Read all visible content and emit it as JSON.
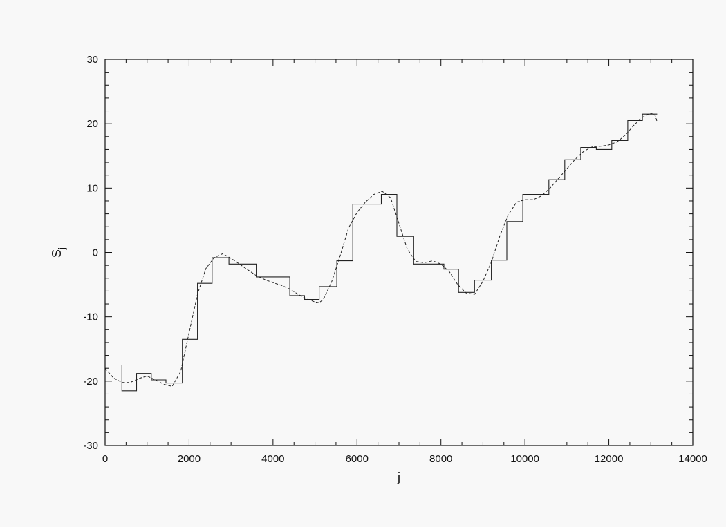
{
  "chart_data": {
    "type": "line",
    "title": "",
    "xlabel": "j",
    "ylabel_main": "S",
    "ylabel_sub": "j",
    "xlim": [
      0,
      14000
    ],
    "ylim": [
      -30,
      30
    ],
    "x_ticks": [
      0,
      2000,
      4000,
      6000,
      8000,
      10000,
      12000,
      14000
    ],
    "x_tick_labels": [
      "0",
      "2000",
      "4000",
      "6000",
      "8000",
      "10000",
      "12000",
      "14000"
    ],
    "y_ticks": [
      -30,
      -20,
      -10,
      0,
      10,
      20,
      30
    ],
    "y_tick_labels": [
      "-30",
      "-20",
      "-10",
      "0",
      "10",
      "20",
      "30"
    ],
    "grid": false,
    "series": [
      {
        "style": "step",
        "x": [
          0,
          400,
          400,
          750,
          750,
          1100,
          1100,
          1450,
          1450,
          1840,
          1840,
          2200,
          2200,
          2550,
          2550,
          2950,
          2950,
          3600,
          3600,
          4400,
          4400,
          4750,
          4750,
          5100,
          5100,
          5520,
          5520,
          5900,
          5900,
          6580,
          6580,
          6950,
          6950,
          7350,
          7350,
          8070,
          8070,
          8420,
          8420,
          8800,
          8800,
          9200,
          9200,
          9570,
          9570,
          9950,
          9950,
          10570,
          10570,
          10950,
          10950,
          11330,
          11330,
          11700,
          11700,
          12070,
          12070,
          12450,
          12450,
          12800,
          12800,
          13150
        ],
        "y": [
          -17.5,
          -17.5,
          -21.5,
          -21.5,
          -18.8,
          -18.8,
          -19.8,
          -19.8,
          -20.3,
          -20.3,
          -13.5,
          -13.5,
          -4.8,
          -4.8,
          -0.8,
          -0.8,
          -1.8,
          -1.8,
          -3.8,
          -3.8,
          -6.7,
          -6.7,
          -7.3,
          -7.3,
          -5.3,
          -5.3,
          -1.3,
          -1.3,
          7.5,
          7.5,
          9.0,
          9.0,
          2.5,
          2.5,
          -1.8,
          -1.8,
          -2.6,
          -2.6,
          -6.2,
          -6.2,
          -4.3,
          -4.3,
          -1.2,
          -1.2,
          4.8,
          4.8,
          9.0,
          9.0,
          11.3,
          11.3,
          14.4,
          14.4,
          16.3,
          16.3,
          16.0,
          16.0,
          17.4,
          17.4,
          20.5,
          20.5,
          21.5,
          21.5
        ]
      },
      {
        "style": "dashed",
        "x": [
          0,
          200,
          400,
          600,
          800,
          1000,
          1200,
          1400,
          1600,
          1800,
          2000,
          2200,
          2400,
          2600,
          2800,
          3000,
          3200,
          3400,
          3600,
          3800,
          4000,
          4200,
          4400,
          4600,
          4800,
          5000,
          5100,
          5200,
          5400,
          5600,
          5800,
          6000,
          6200,
          6400,
          6600,
          6800,
          7000,
          7200,
          7400,
          7600,
          7800,
          8000,
          8200,
          8400,
          8600,
          8800,
          9000,
          9200,
          9400,
          9600,
          9800,
          10000,
          10200,
          10400,
          10600,
          10800,
          11000,
          11200,
          11400,
          11600,
          11800,
          12000,
          12200,
          12400,
          12600,
          12800,
          13000,
          13100,
          13150
        ],
        "y": [
          -18.0,
          -19.5,
          -20.2,
          -20.2,
          -19.6,
          -19.2,
          -19.8,
          -20.5,
          -20.8,
          -18.5,
          -12.5,
          -6.5,
          -2.5,
          -0.8,
          -0.2,
          -0.9,
          -1.8,
          -2.7,
          -3.6,
          -4.2,
          -4.7,
          -5.1,
          -5.7,
          -6.5,
          -7.2,
          -7.7,
          -7.8,
          -7.3,
          -4.5,
          -0.5,
          3.8,
          6.2,
          7.8,
          9.0,
          9.5,
          8.5,
          4.5,
          0.5,
          -1.4,
          -1.6,
          -1.3,
          -1.8,
          -3.0,
          -5.0,
          -6.3,
          -6.5,
          -4.5,
          -1.5,
          2.5,
          5.8,
          7.8,
          8.2,
          8.2,
          8.8,
          10.0,
          11.5,
          13.0,
          14.5,
          15.7,
          16.4,
          16.5,
          16.7,
          17.2,
          18.3,
          19.8,
          21.0,
          21.7,
          21.3,
          20.3
        ]
      }
    ]
  }
}
